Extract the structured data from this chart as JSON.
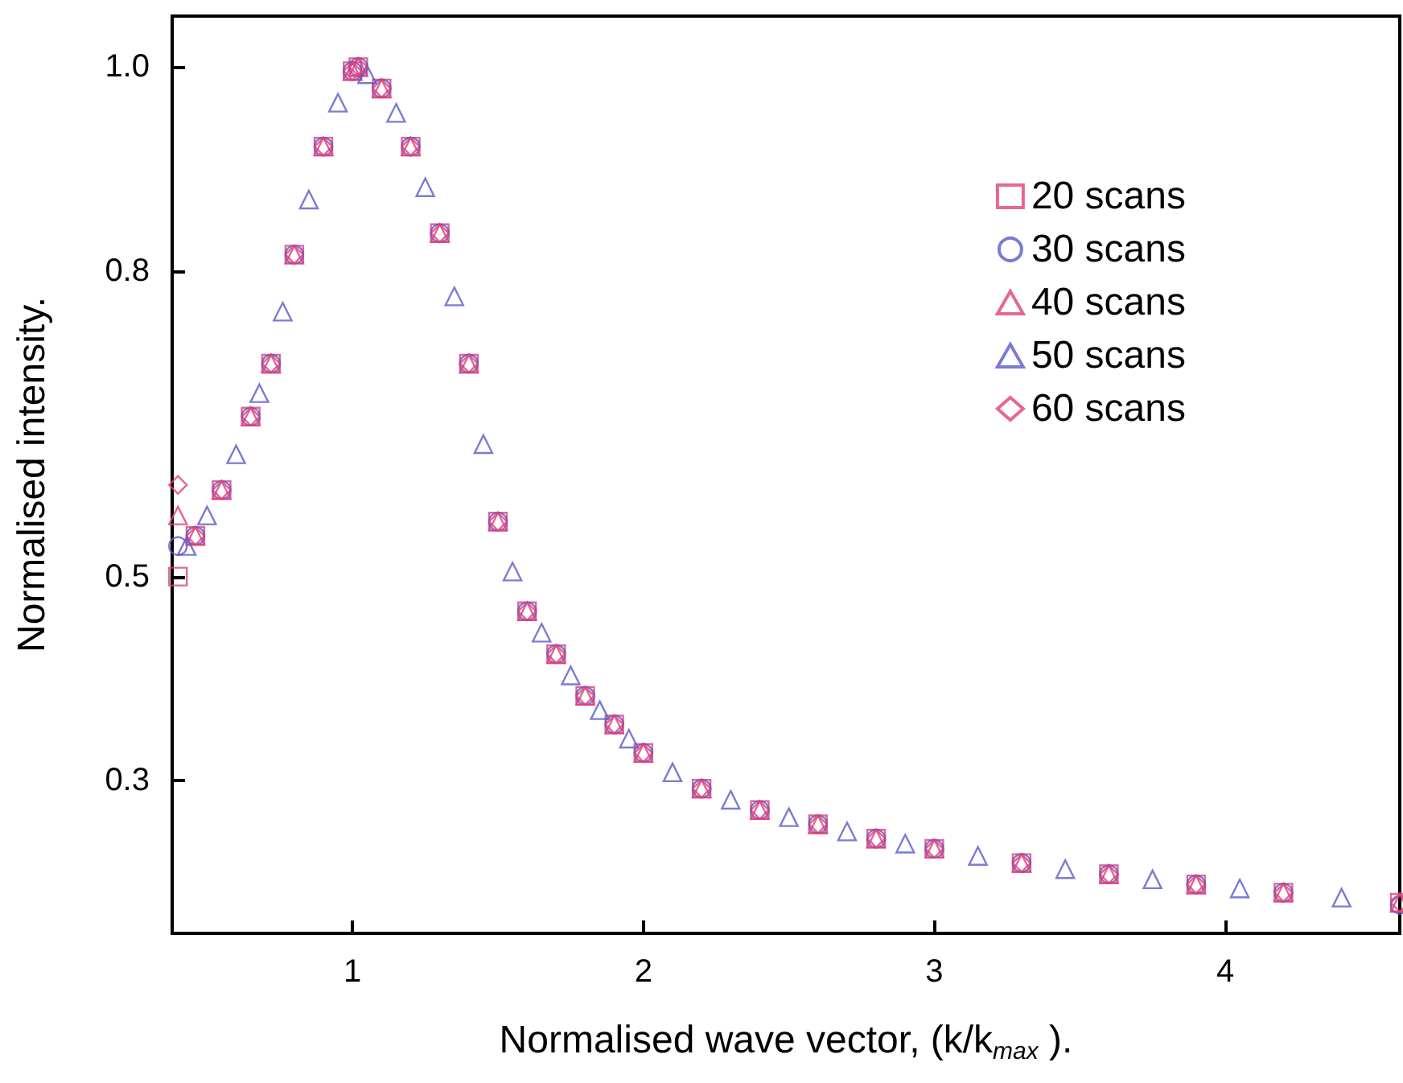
{
  "chart_data": {
    "type": "scatter",
    "xlabel": "Normalised wave vector, (k/k$_{max}$ ).",
    "ylabel": "Normalised intensity.",
    "x": [
      0.4,
      0.46,
      0.55,
      0.65,
      0.72,
      0.8,
      0.9,
      1.0,
      1.02,
      1.1,
      1.2,
      1.3,
      1.4,
      1.5,
      1.6,
      1.7,
      1.8,
      1.9,
      2.0,
      2.2,
      2.4,
      2.6,
      2.8,
      3.0,
      3.3,
      3.6,
      3.9,
      4.2,
      4.6
    ],
    "series": [
      {
        "name": "20 scans",
        "color": "#e0407a",
        "marker": "square",
        "values": [
          0.5,
          0.54,
          0.585,
          0.657,
          0.709,
          0.816,
          0.922,
          0.996,
          1.0,
          0.979,
          0.922,
          0.837,
          0.709,
          0.554,
          0.466,
          0.424,
          0.383,
          0.355,
          0.327,
          0.292,
          0.271,
          0.257,
          0.243,
          0.233,
          0.219,
          0.208,
          0.198,
          0.19,
          0.18
        ]
      },
      {
        "name": "30 scans",
        "color": "#5a5ac8",
        "marker": "circle",
        "values": [
          0.53,
          0.54,
          0.585,
          0.657,
          0.709,
          0.816,
          0.922,
          0.996,
          1.0,
          0.979,
          0.922,
          0.837,
          0.709,
          0.554,
          0.466,
          0.424,
          0.383,
          0.355,
          0.327,
          0.292,
          0.271,
          0.257,
          0.243,
          0.233,
          0.219,
          0.208,
          0.198,
          0.19,
          0.178
        ]
      },
      {
        "name": "40 scans",
        "color": "#e0407a",
        "marker": "triangle",
        "values": [
          0.56,
          0.54,
          0.585,
          0.657,
          0.709,
          0.816,
          0.922,
          0.996,
          1.0,
          0.979,
          0.922,
          0.837,
          0.709,
          0.554,
          0.466,
          0.424,
          0.383,
          0.355,
          0.327,
          0.292,
          0.271,
          0.257,
          0.243,
          0.233,
          0.219,
          0.208,
          0.198,
          0.19,
          0.18
        ]
      },
      {
        "name": "50 scans",
        "color": "#5a5ac8",
        "marker": "triangle",
        "x": [
          0.43,
          0.5,
          0.6,
          0.68,
          0.76,
          0.85,
          0.95,
          1.05,
          1.15,
          1.25,
          1.35,
          1.45,
          1.55,
          1.65,
          1.75,
          1.85,
          1.95,
          2.1,
          2.3,
          2.5,
          2.7,
          2.9,
          3.15,
          3.45,
          3.75,
          4.05,
          4.4
        ],
        "values": [
          0.53,
          0.56,
          0.62,
          0.68,
          0.76,
          0.87,
          0.965,
          0.993,
          0.955,
          0.882,
          0.775,
          0.63,
          0.505,
          0.445,
          0.403,
          0.369,
          0.341,
          0.308,
          0.281,
          0.264,
          0.25,
          0.238,
          0.226,
          0.213,
          0.203,
          0.194,
          0.185
        ]
      },
      {
        "name": "60 scans",
        "color": "#e0407a",
        "marker": "diamond",
        "values": [
          0.59,
          0.54,
          0.585,
          0.657,
          0.709,
          0.816,
          0.922,
          0.996,
          1.0,
          0.979,
          0.922,
          0.837,
          0.709,
          0.554,
          0.466,
          0.424,
          0.383,
          0.355,
          0.327,
          0.292,
          0.271,
          0.257,
          0.243,
          0.233,
          0.219,
          0.208,
          0.198,
          0.19,
          0.18
        ]
      }
    ],
    "xlim": [
      0.38,
      4.6
    ],
    "xticks": [
      1,
      2,
      3,
      4
    ],
    "ylim": [
      0.15,
      1.05
    ],
    "yticks": [
      {
        "value": 1,
        "label": "1.0"
      },
      0.8,
      0.5,
      0.3
    ],
    "grid": false,
    "legend": "top right"
  }
}
